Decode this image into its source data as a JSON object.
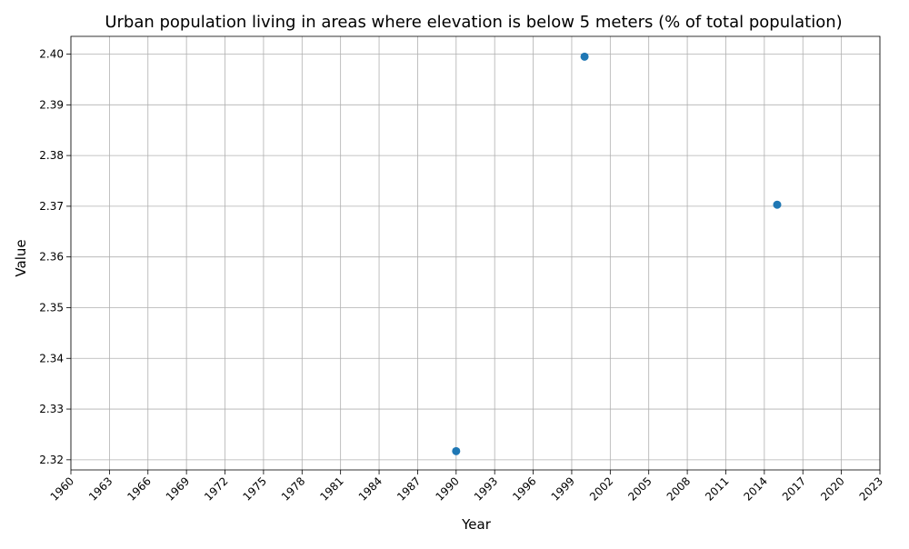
{
  "chart_data": {
    "type": "scatter",
    "title": "Urban population living in areas where elevation is below 5 meters (% of total population)",
    "xlabel": "Year",
    "ylabel": "Value",
    "xlim": [
      1960,
      2023
    ],
    "ylim": [
      2.318,
      2.4035
    ],
    "x_ticks": [
      1960,
      1963,
      1966,
      1969,
      1972,
      1975,
      1978,
      1981,
      1984,
      1987,
      1990,
      1993,
      1996,
      1999,
      2002,
      2005,
      2008,
      2011,
      2014,
      2017,
      2020,
      2023
    ],
    "y_ticks": [
      2.32,
      2.33,
      2.34,
      2.35,
      2.36,
      2.37,
      2.38,
      2.39,
      2.4
    ],
    "grid": true,
    "series": [
      {
        "x": [
          1990,
          2000,
          2015
        ],
        "y": [
          2.3217,
          2.3995,
          2.3703
        ]
      }
    ],
    "colors": {
      "marker": "#1f77b4",
      "grid": "#b0b0b0",
      "axis": "#000000"
    }
  }
}
